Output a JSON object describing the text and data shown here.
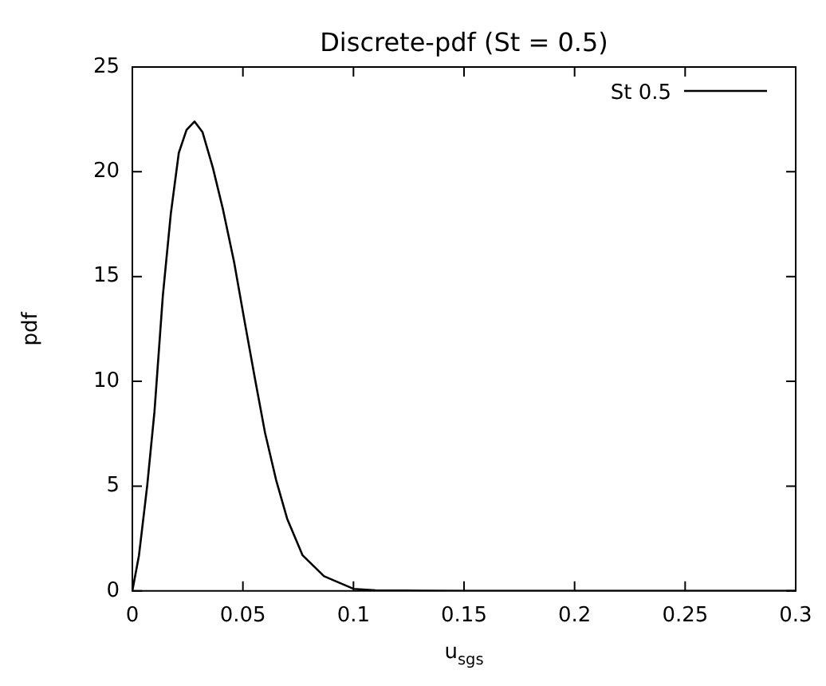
{
  "chart_data": {
    "type": "line",
    "title": "Discrete-pdf (St = 0.5)",
    "xlabel": "u$_{sgs}$",
    "ylabel": "pdf",
    "series": [
      {
        "name": "St 0.5",
        "color": "#000000",
        "x": [
          0,
          0.003,
          0.0067,
          0.01,
          0.0138,
          0.0174,
          0.021,
          0.0245,
          0.0281,
          0.0317,
          0.0364,
          0.041,
          0.046,
          0.0507,
          0.0555,
          0.06,
          0.065,
          0.07,
          0.077,
          0.0867,
          0.1,
          0.11,
          0.13,
          0.15,
          0.2,
          0.3
        ],
        "values": [
          0,
          1.7,
          5,
          8.55,
          14.1,
          18,
          20.9,
          22,
          22.4,
          21.9,
          20.2,
          18.2,
          15.7,
          12.9,
          10.1,
          7.55,
          5.3,
          3.45,
          1.7,
          0.7,
          0.1,
          0.03,
          0.01,
          0,
          0,
          0
        ]
      }
    ],
    "xlim": [
      0,
      0.3
    ],
    "xticks": [
      0,
      0.05,
      0.1,
      0.15,
      0.2,
      0.25,
      0.3
    ],
    "ylim": [
      0,
      25
    ],
    "yticks": [
      0,
      5,
      10,
      15,
      20,
      25
    ],
    "grid": false,
    "legend": "top right",
    "marker": "none",
    "line_style": "solid"
  }
}
